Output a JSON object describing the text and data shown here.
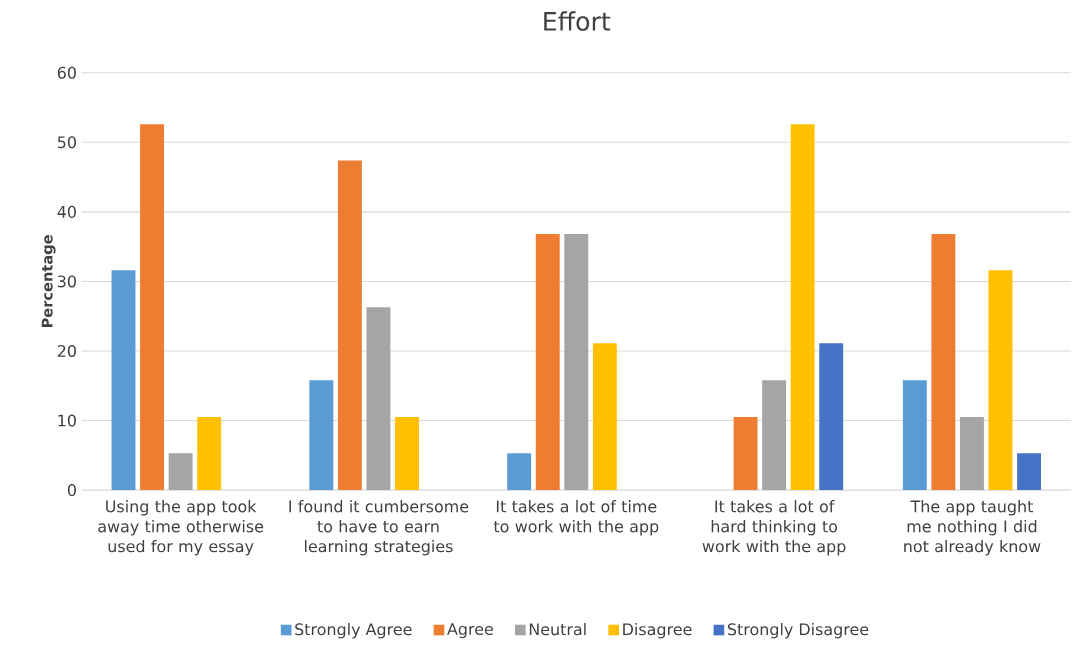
{
  "chart_data": {
    "type": "bar",
    "title": "Effort",
    "ylabel": "Percentage",
    "categories": [
      "Using the app took away time otherwise used for my essay",
      "I found it cumbersome to have to earn learning strategies",
      "It takes a lot of time to work with the app",
      "It takes a lot of hard thinking to work with the app",
      "The app taught me nothing I did not already know"
    ],
    "series": [
      {
        "name": "Strongly Agree",
        "color": "#5b9bd5",
        "values": [
          31.6,
          15.8,
          5.3,
          0,
          15.8
        ]
      },
      {
        "name": "Agree",
        "color": "#ed7d31",
        "values": [
          52.6,
          47.4,
          36.8,
          10.5,
          36.8
        ]
      },
      {
        "name": "Neutral",
        "color": "#a5a5a5",
        "values": [
          5.3,
          26.3,
          36.8,
          15.8,
          10.5
        ]
      },
      {
        "name": "Disagree",
        "color": "#ffc000",
        "values": [
          10.5,
          10.5,
          21.1,
          52.6,
          31.6
        ]
      },
      {
        "name": "Strongly Disagree",
        "color": "#4472c4",
        "values": [
          0,
          0,
          0,
          21.1,
          5.3
        ]
      }
    ],
    "ylim": [
      0,
      60
    ],
    "yticks": [
      0,
      10,
      20,
      30,
      40,
      50,
      60
    ],
    "grid": "y",
    "legend": "bottom"
  }
}
